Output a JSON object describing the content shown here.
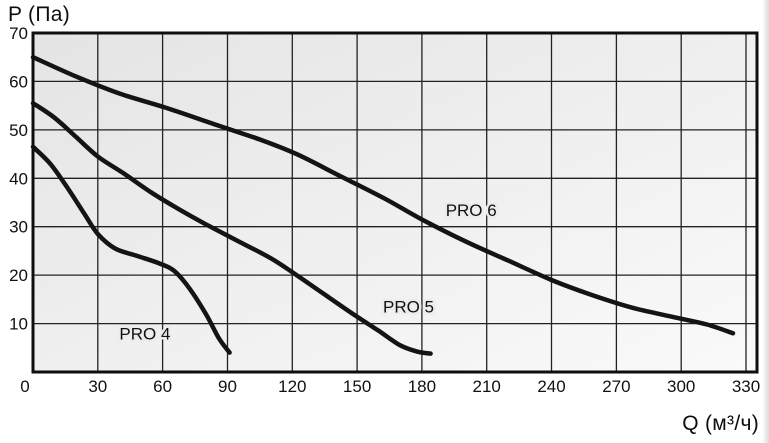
{
  "chart_data": {
    "type": "line",
    "xlabel": "Q (м³/ч)",
    "ylabel": "P (Па)",
    "xlim": [
      0,
      330
    ],
    "ylim": [
      0,
      70
    ],
    "x_ticks": [
      0,
      30,
      60,
      90,
      120,
      150,
      180,
      210,
      240,
      270,
      300,
      330
    ],
    "y_ticks": [
      10,
      20,
      30,
      40,
      50,
      60,
      70
    ],
    "grid": true,
    "legend_position": "inline-labels",
    "line_color": "#141414",
    "grid_color": "#222222",
    "border_color": "#0e0e0e",
    "plot_bg_gradient": [
      "#e4e4e4",
      "#fafafa"
    ],
    "series": [
      {
        "name": "PRO 4",
        "label_pos": [
          40,
          8
        ],
        "points": [
          [
            0,
            46.5
          ],
          [
            8,
            43
          ],
          [
            16,
            38
          ],
          [
            24,
            32.5
          ],
          [
            30,
            28.5
          ],
          [
            38,
            25.5
          ],
          [
            48,
            24
          ],
          [
            58,
            22.5
          ],
          [
            65,
            21
          ],
          [
            72,
            17.5
          ],
          [
            80,
            12
          ],
          [
            86,
            7
          ],
          [
            91,
            4
          ]
        ]
      },
      {
        "name": "PRO 5",
        "label_pos": [
          162,
          13.5
        ],
        "points": [
          [
            0,
            55.5
          ],
          [
            10,
            52.5
          ],
          [
            20,
            48.5
          ],
          [
            30,
            44.5
          ],
          [
            42,
            41
          ],
          [
            55,
            37
          ],
          [
            68,
            33.5
          ],
          [
            80,
            30.5
          ],
          [
            95,
            27
          ],
          [
            110,
            23.5
          ],
          [
            122,
            20
          ],
          [
            135,
            16
          ],
          [
            148,
            12
          ],
          [
            160,
            8.5
          ],
          [
            170,
            5.5
          ],
          [
            178,
            4.2
          ],
          [
            184,
            3.8
          ]
        ]
      },
      {
        "name": "PRO 6",
        "label_pos": [
          191,
          33.5
        ],
        "points": [
          [
            0,
            65
          ],
          [
            20,
            61
          ],
          [
            40,
            57.5
          ],
          [
            62,
            54.5
          ],
          [
            85,
            51
          ],
          [
            105,
            48
          ],
          [
            122,
            45
          ],
          [
            142,
            40.5
          ],
          [
            162,
            36
          ],
          [
            180,
            31.5
          ],
          [
            200,
            27
          ],
          [
            220,
            23
          ],
          [
            240,
            19
          ],
          [
            258,
            16
          ],
          [
            278,
            13.2
          ],
          [
            298,
            11.2
          ],
          [
            312,
            9.8
          ],
          [
            324,
            8
          ]
        ]
      }
    ]
  }
}
